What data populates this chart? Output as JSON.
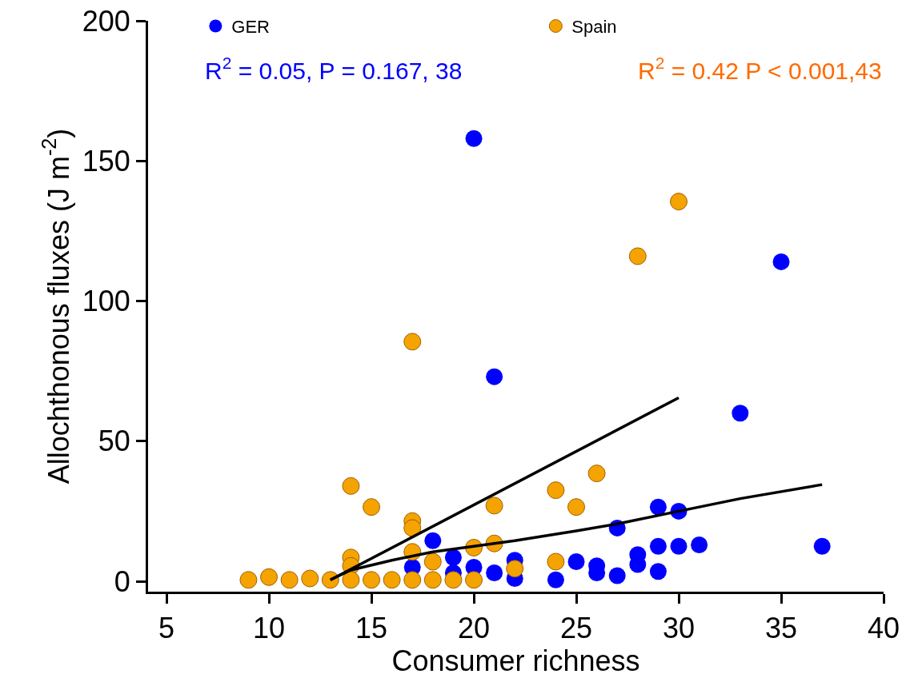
{
  "chart_data": {
    "type": "scatter",
    "xlabel": "Consumer richness",
    "ylabel": "Allochthonous fluxes (J m$^{-2}$)",
    "xlim": [
      4.1,
      40
    ],
    "xticks": [
      5,
      10,
      15,
      20,
      25,
      30,
      35,
      40
    ],
    "ylim": [
      -3.7,
      200
    ],
    "yticks": [
      0,
      50,
      100,
      150,
      200
    ],
    "grid": false,
    "legend": "top",
    "marker": "circle",
    "annotations": [
      "R$^{2}$ = 0.05, P = 0.167, 38",
      "R$^{2}$ = 0.42 P < 0.001,43"
    ],
    "series": [
      {
        "name": "GER",
        "color": "#0000ff",
        "x": [
          20,
          35,
          21,
          33,
          29,
          30,
          27,
          18,
          37,
          31,
          30,
          29,
          28,
          28,
          17,
          19,
          19,
          20,
          21,
          22,
          22,
          24,
          25,
          26,
          26,
          27,
          29
        ],
        "values": [
          158,
          114,
          73,
          60,
          26.5,
          25,
          19,
          14.5,
          12.5,
          13,
          12.5,
          12.5,
          9.5,
          6,
          5,
          8.5,
          3,
          5,
          3,
          7.5,
          1,
          0.5,
          7,
          5.5,
          3,
          2,
          3.5
        ]
      },
      {
        "name": "Spain",
        "color": "#f5a300",
        "x": [
          30,
          28,
          17,
          14,
          15,
          17,
          17,
          21,
          24,
          26,
          25,
          17,
          20,
          21,
          18,
          14,
          14,
          24,
          22,
          9,
          10,
          11,
          12,
          13,
          14,
          15,
          16,
          17,
          18,
          19,
          20
        ],
        "values": [
          135.5,
          116,
          85.5,
          34,
          26.5,
          21.5,
          19,
          27,
          32.5,
          38.5,
          26.5,
          10.5,
          12,
          13.5,
          7,
          8.5,
          5.5,
          7,
          4.5,
          0.5,
          1.5,
          0.5,
          1,
          0.5,
          0.5,
          0.5,
          0.5,
          0.5,
          0.5,
          0.5,
          0.5
        ]
      },
      {
        "type": "line",
        "marker": "none",
        "color": "#000000",
        "x": [
          13,
          30
        ],
        "values": [
          0.5,
          65.5
        ]
      },
      {
        "type": "line",
        "marker": "none",
        "color": "#000000",
        "x": [
          13,
          14,
          16,
          18,
          20,
          22,
          25,
          27,
          30,
          33,
          37
        ],
        "values": [
          0.5,
          4,
          7.5,
          10.5,
          12.5,
          14.5,
          18,
          20.5,
          25,
          29.5,
          34.5
        ]
      }
    ]
  }
}
